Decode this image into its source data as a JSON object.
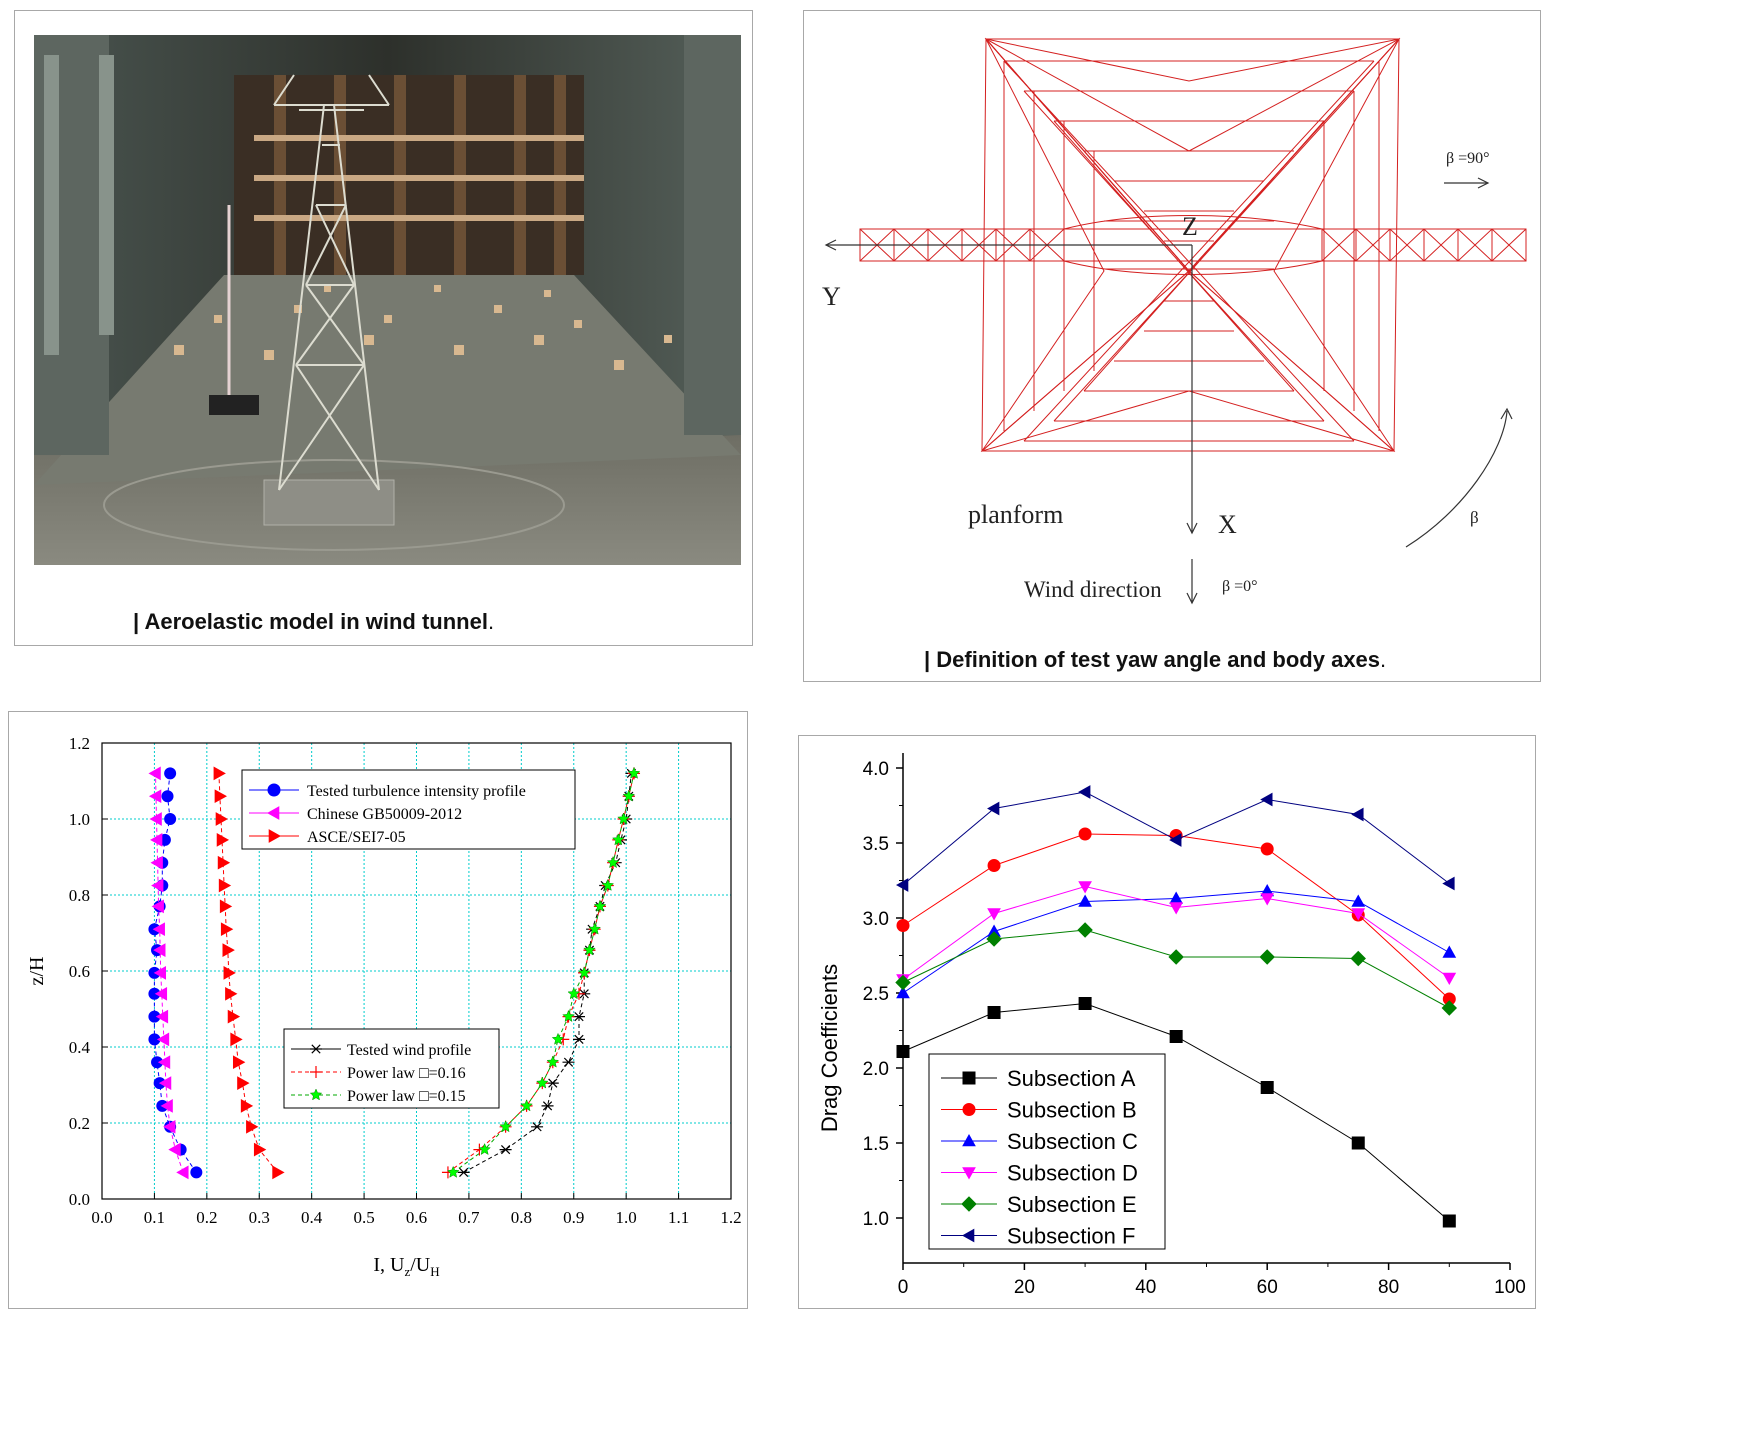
{
  "figures": {
    "photo": {
      "caption": "Aeroelastic model in wind tunnel",
      "caption_bar": "|",
      "caption_end": "."
    },
    "axes_def": {
      "caption": "Definition of test yaw angle and body axes",
      "caption_bar": "|",
      "caption_end": ".",
      "labels": {
        "z": "Z",
        "y": "Y",
        "x": "X",
        "planform": "planform",
        "wind_direction": "Wind direction",
        "beta0": "β =0°",
        "beta90": "β =90°",
        "beta": "β"
      },
      "colors": {
        "truss": "#d42020",
        "axes": "#333333"
      }
    }
  },
  "chart_data": [
    {
      "type": "line",
      "xlabel": "I, U",
      "xlabel_sub1": "z",
      "xlabel_mid": "/U",
      "xlabel_sub2": "H",
      "ylabel": "z/H",
      "xlim": [
        0.0,
        1.2
      ],
      "ylim": [
        0.0,
        1.2
      ],
      "xticks": [
        "0.0",
        "0.1",
        "0.2",
        "0.3",
        "0.4",
        "0.5",
        "0.6",
        "0.7",
        "0.8",
        "0.9",
        "1.0",
        "1.1",
        "1.2"
      ],
      "yticks": [
        "0.0",
        "0.2",
        "0.4",
        "0.6",
        "0.8",
        "1.0",
        "1.2"
      ],
      "grid": true,
      "legend_top": [
        "Tested turbulence intensity profile",
        "Chinese GB50009-2012",
        "ASCE/SEI7-05"
      ],
      "legend_bottom": [
        "Tested wind profile",
        "Power law □=0.16",
        "Power law □=0.15"
      ],
      "z": [
        0.07,
        0.13,
        0.19,
        0.245,
        0.305,
        0.36,
        0.42,
        0.48,
        0.54,
        0.595,
        0.655,
        0.71,
        0.77,
        0.825,
        0.885,
        0.945,
        1.0,
        1.06,
        1.12
      ],
      "series": [
        {
          "name": "Tested turbulence intensity profile",
          "color": "#0000ff",
          "marker": "circle",
          "values": [
            0.18,
            0.15,
            0.13,
            0.115,
            0.11,
            0.105,
            0.1,
            0.1,
            0.1,
            0.1,
            0.105,
            0.1,
            0.11,
            0.115,
            0.115,
            0.12,
            0.13,
            0.125,
            0.13
          ]
        },
        {
          "name": "Chinese GB50009-2012",
          "color": "#ff00ff",
          "marker": "triangle-left",
          "values": [
            0.155,
            0.14,
            0.13,
            0.125,
            0.122,
            0.12,
            0.118,
            0.116,
            0.114,
            0.112,
            0.111,
            0.11,
            0.108,
            0.107,
            0.106,
            0.105,
            0.104,
            0.103,
            0.102
          ]
        },
        {
          "name": "ASCE/SEI7-05",
          "color": "#ff0000",
          "marker": "triangle-right",
          "values": [
            0.335,
            0.3,
            0.285,
            0.275,
            0.268,
            0.26,
            0.255,
            0.25,
            0.245,
            0.242,
            0.24,
            0.237,
            0.235,
            0.233,
            0.231,
            0.229,
            0.227,
            0.225,
            0.223
          ]
        },
        {
          "name": "Tested wind profile",
          "color": "#000000",
          "marker": "asterisk",
          "values": [
            0.69,
            0.77,
            0.83,
            0.85,
            0.86,
            0.89,
            0.91,
            0.91,
            0.92,
            0.92,
            0.93,
            0.935,
            0.95,
            0.96,
            0.98,
            0.99,
            1.0,
            1.005,
            1.01
          ]
        },
        {
          "name": "Power law □=0.16",
          "color": "#ff0000",
          "marker": "plus",
          "values": [
            0.66,
            0.72,
            0.77,
            0.81,
            0.84,
            0.86,
            0.88,
            0.89,
            0.91,
            0.92,
            0.93,
            0.94,
            0.95,
            0.965,
            0.975,
            0.985,
            0.995,
            1.005,
            1.015
          ]
        },
        {
          "name": "Power law □=0.15",
          "color": "#00ff00",
          "marker": "star",
          "values": [
            0.67,
            0.73,
            0.77,
            0.81,
            0.84,
            0.86,
            0.87,
            0.89,
            0.9,
            0.92,
            0.93,
            0.94,
            0.95,
            0.965,
            0.975,
            0.985,
            0.995,
            1.005,
            1.015
          ]
        }
      ]
    },
    {
      "type": "line",
      "xlabel": "",
      "ylabel": "Drag Coefficients",
      "xlim": [
        0,
        100
      ],
      "ylim": [
        0.7,
        4.1
      ],
      "xticks": [
        "0",
        "20",
        "40",
        "60",
        "80",
        "100"
      ],
      "yticks": [
        "1.0",
        "1.5",
        "2.0",
        "2.5",
        "3.0",
        "3.5",
        "4.0"
      ],
      "legend_placement": "bottom-left",
      "x": [
        0,
        15,
        30,
        45,
        60,
        75,
        90
      ],
      "series": [
        {
          "name": "Subsection A",
          "color": "#000000",
          "marker": "square",
          "values": [
            2.11,
            2.37,
            2.43,
            2.21,
            1.87,
            1.5,
            0.98
          ]
        },
        {
          "name": "Subsection B",
          "color": "#ff0000",
          "marker": "circle",
          "values": [
            2.95,
            3.35,
            3.56,
            3.55,
            3.46,
            3.02,
            2.46
          ]
        },
        {
          "name": "Subsection C",
          "color": "#0000ff",
          "marker": "triangle-up",
          "values": [
            2.5,
            2.91,
            3.11,
            3.13,
            3.18,
            3.11,
            2.77
          ]
        },
        {
          "name": "Subsection D",
          "color": "#ff00ff",
          "marker": "triangle-down",
          "values": [
            2.59,
            3.03,
            3.21,
            3.07,
            3.13,
            3.03,
            2.6
          ]
        },
        {
          "name": "Subsection E",
          "color": "#008000",
          "marker": "diamond",
          "values": [
            2.57,
            2.86,
            2.92,
            2.74,
            2.74,
            2.73,
            2.4
          ]
        },
        {
          "name": "Subsection F",
          "color": "#000080",
          "marker": "triangle-left",
          "values": [
            3.22,
            3.73,
            3.84,
            3.52,
            3.79,
            3.69,
            3.23
          ]
        }
      ]
    }
  ]
}
